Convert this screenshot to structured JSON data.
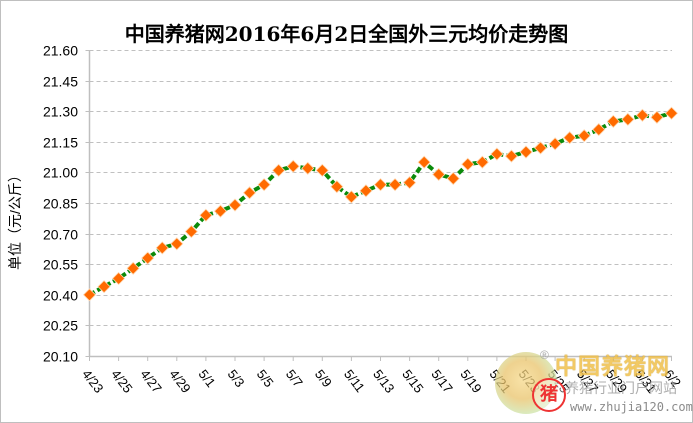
{
  "chart_data": {
    "type": "line",
    "title": "中国养猪网2016年6月2日全国外三元均价走势图",
    "xlabel": "",
    "ylabel": "单位（元/公斤）",
    "ylim": [
      20.1,
      21.6
    ],
    "yticks": [
      "21.60",
      "21.45",
      "21.30",
      "21.15",
      "21.00",
      "20.85",
      "20.70",
      "20.55",
      "20.40",
      "20.25",
      "20.10"
    ],
    "grid": "horizontal dashed",
    "legend": "none",
    "x": [
      "4/23",
      "4/24",
      "4/25",
      "4/26",
      "4/27",
      "4/28",
      "4/29",
      "4/30",
      "5/1",
      "5/2",
      "5/3",
      "5/4",
      "5/5",
      "5/6",
      "5/7",
      "5/8",
      "5/9",
      "5/10",
      "5/11",
      "5/12",
      "5/13",
      "5/14",
      "5/15",
      "5/16",
      "5/17",
      "5/18",
      "5/19",
      "5/20",
      "5/21",
      "5/22",
      "5/23",
      "5/24",
      "5/25",
      "5/26",
      "5/27",
      "5/28",
      "5/29",
      "5/30",
      "5/31",
      "6/1",
      "6/2"
    ],
    "xtick_labels": [
      "4/23",
      "4/25",
      "4/27",
      "4/29",
      "5/1",
      "5/3",
      "5/5",
      "5/7",
      "5/9",
      "5/11",
      "5/13",
      "5/15",
      "5/17",
      "5/19",
      "5/21",
      "5/23",
      "5/25",
      "5/27",
      "5/29",
      "5/31",
      "6/2"
    ],
    "series": [
      {
        "name": "外三元均价",
        "line_color": "#0a8a0a",
        "marker_color": "#ff6a00",
        "values": [
          20.4,
          20.44,
          20.48,
          20.53,
          20.58,
          20.63,
          20.65,
          20.71,
          20.79,
          20.81,
          20.84,
          20.9,
          20.94,
          21.01,
          21.03,
          21.02,
          21.01,
          20.93,
          20.88,
          20.91,
          20.94,
          20.94,
          20.95,
          21.05,
          20.99,
          20.97,
          21.04,
          21.05,
          21.09,
          21.08,
          21.1,
          21.12,
          21.14,
          21.17,
          21.18,
          21.21,
          21.25,
          21.26,
          21.28,
          21.27,
          21.29
        ]
      }
    ]
  },
  "watermark": {
    "brand": "中国养猪网",
    "registered": "®",
    "seal_char": "猪",
    "slogan": "养猪行业门户网站",
    "url": "www.zhujia120.com"
  }
}
